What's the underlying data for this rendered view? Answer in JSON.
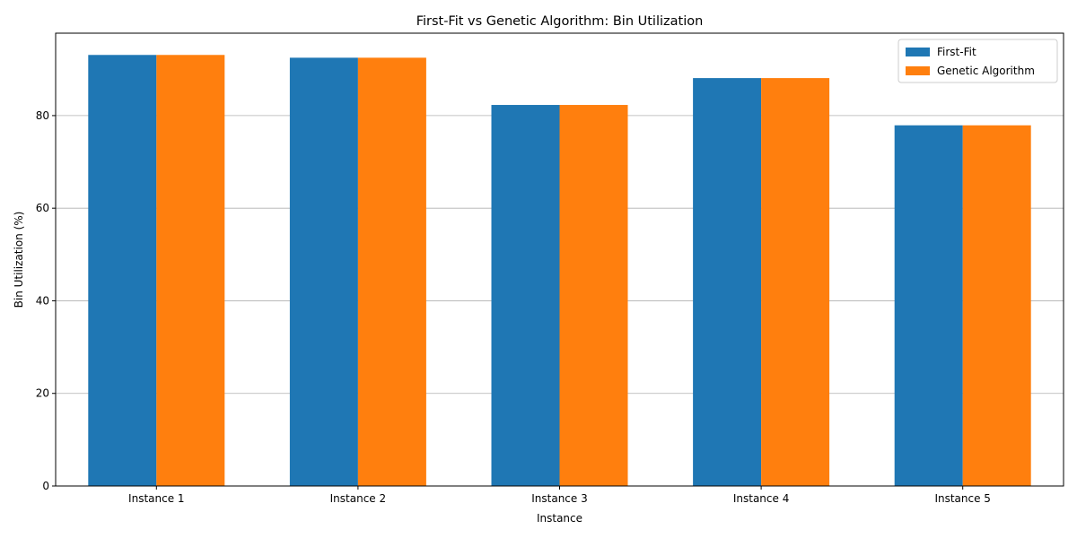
{
  "chart_data": {
    "type": "bar",
    "title": "First-Fit vs Genetic Algorithm: Bin Utilization",
    "xlabel": "Instance",
    "ylabel": "Bin Utilization (%)",
    "categories": [
      "Instance 1",
      "Instance 2",
      "Instance 3",
      "Instance 4",
      "Instance 5"
    ],
    "series": [
      {
        "name": "First-Fit",
        "color": "#1f77b4",
        "values": [
          93.1,
          92.5,
          82.3,
          88.1,
          77.9
        ]
      },
      {
        "name": "Genetic Algorithm",
        "color": "#ff7f0e",
        "values": [
          93.1,
          92.5,
          82.3,
          88.1,
          77.9
        ]
      }
    ],
    "ylim": [
      0,
      97.8
    ],
    "yticks": [
      0,
      20,
      40,
      60,
      80
    ],
    "grid": "y",
    "legend_position": "top-right"
  }
}
